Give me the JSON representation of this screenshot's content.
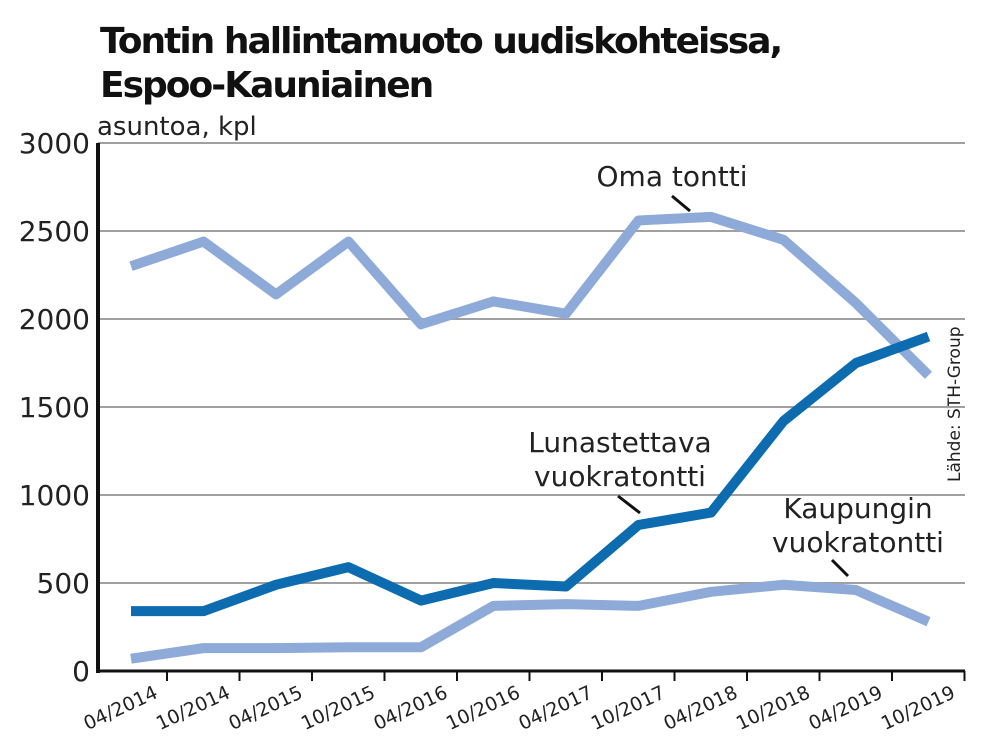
{
  "chart_data": {
    "type": "line",
    "title_line1": "Tontin hallintamuoto uudiskohteissa,",
    "title_line2": "Espoo-Kauniainen",
    "ylabel": "asuntoa, kpl",
    "source": "Lähde: STH-Group",
    "ylim": [
      0,
      3000
    ],
    "yticks": [
      0,
      500,
      1000,
      1500,
      2000,
      2500,
      3000
    ],
    "categories": [
      "04/2014",
      "10/2014",
      "04/2015",
      "10/2015",
      "04/2016",
      "10/2016",
      "04/2017",
      "10/2017",
      "04/2018",
      "10/2018",
      "04/2019",
      "10/2019"
    ],
    "grid": "horizontal",
    "series": [
      {
        "name": "Oma tontti",
        "color": "#8eaad8",
        "values": [
          2300,
          2440,
          2140,
          2440,
          1970,
          2100,
          2030,
          2560,
          2580,
          2450,
          2090,
          1680
        ]
      },
      {
        "name": "Lunastettava vuokratontti",
        "color": "#0d6bb0",
        "values": [
          340,
          340,
          490,
          590,
          400,
          500,
          480,
          830,
          900,
          1420,
          1750,
          1900
        ]
      },
      {
        "name": "Kaupungin vuokratontti",
        "color": "#8eaad8",
        "values": [
          70,
          130,
          130,
          135,
          135,
          370,
          380,
          370,
          450,
          490,
          460,
          280
        ]
      }
    ],
    "annotations": [
      {
        "series": 0,
        "lines": [
          "Oma tontti"
        ]
      },
      {
        "series": 1,
        "lines": [
          "Lunastettava",
          "vuokratontti"
        ]
      },
      {
        "series": 2,
        "lines": [
          "Kaupungin",
          "vuokratontti"
        ]
      }
    ]
  }
}
